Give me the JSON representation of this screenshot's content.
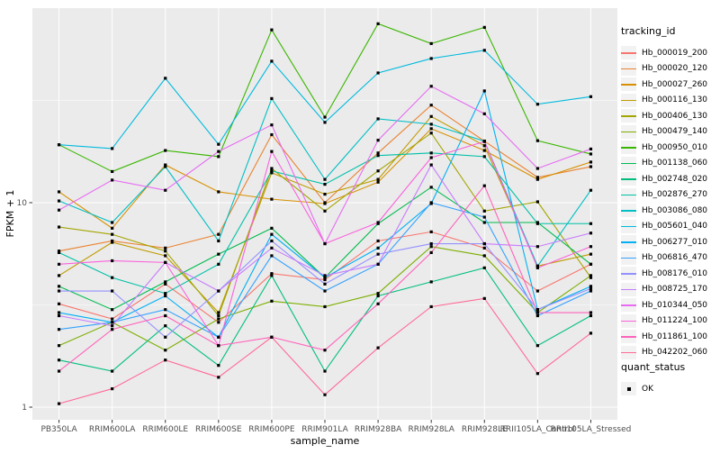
{
  "figure": {
    "background": "#FFFFFF",
    "panel_background": "#EBEBEB",
    "gridline_color": "#FFFFFF",
    "tick_color": "#333333",
    "tick_label_color": "#4D4D4D",
    "axis_title_color": "#000000",
    "legend_key_fill": "#F2F2F2"
  },
  "legend": {
    "tracking_title": "tracking_id",
    "quant_title": "quant_status",
    "quant_items": [
      {
        "label": "OK",
        "marker": "black-filled-square"
      }
    ]
  },
  "chart_data": {
    "type": "line",
    "title": "",
    "xlabel": "sample_name",
    "ylabel": "FPKM + 1",
    "y_scale": "log10",
    "ylim": [
      0.87,
      90
    ],
    "y_ticks": [
      1,
      10
    ],
    "y_minor_ticks": [
      3.1623,
      31.623
    ],
    "grid": true,
    "legend_position": "right",
    "point_marker": "filled-square",
    "point_color": "#000000",
    "categories": [
      "PB350LA",
      "RRIM600LA",
      "RRIM600LE",
      "RRIM600SE",
      "RRIM600PE",
      "RRIM901LA",
      "RRIM928BA",
      "RRIM928LA",
      "RRIM928LE",
      "RRII105LA_Control",
      "RRII105LA_Stressed"
    ],
    "series": [
      {
        "name": "Hb_000019_200",
        "color": "#F8766D",
        "values": [
          3.2,
          2.7,
          4.0,
          2.6,
          4.5,
          4.2,
          6.5,
          7.2,
          6.0,
          3.7,
          5.0
        ]
      },
      {
        "name": "Hb_000020_120",
        "color": "#EA8331",
        "values": [
          5.8,
          6.5,
          6.0,
          7.0,
          21.5,
          10.0,
          17.5,
          30.0,
          20.0,
          13.3,
          15.0
        ]
      },
      {
        "name": "Hb_000027_260",
        "color": "#D89000",
        "values": [
          11.3,
          7.5,
          15.3,
          11.3,
          10.4,
          9.9,
          12.6,
          23.0,
          18.0,
          13.0,
          15.8
        ]
      },
      {
        "name": "Hb_000116_130",
        "color": "#C09B00",
        "values": [
          4.4,
          6.4,
          5.5,
          2.9,
          14.0,
          11.0,
          13.0,
          26.4,
          19.0,
          4.9,
          5.6
        ]
      },
      {
        "name": "Hb_000406_130",
        "color": "#A3A500",
        "values": [
          7.6,
          7.0,
          5.8,
          2.8,
          14.7,
          9.1,
          14.3,
          21.9,
          9.1,
          10.1,
          4.3
        ]
      },
      {
        "name": "Hb_000479_140",
        "color": "#7CAE00",
        "values": [
          2.0,
          2.6,
          1.9,
          2.7,
          3.3,
          3.1,
          3.6,
          6.1,
          5.5,
          2.9,
          4.4
        ]
      },
      {
        "name": "Hb_000950_010",
        "color": "#39B600",
        "values": [
          19.2,
          14.2,
          18.0,
          16.8,
          70.0,
          26.2,
          75.0,
          60.0,
          72.0,
          20.1,
          17.3
        ]
      },
      {
        "name": "Hb_001138_060",
        "color": "#00BB4E",
        "values": [
          3.9,
          3.0,
          4.1,
          5.6,
          7.5,
          4.3,
          7.9,
          11.9,
          8.0,
          8.0,
          5.0
        ]
      },
      {
        "name": "Hb_002748_020",
        "color": "#00BF7D",
        "values": [
          1.7,
          1.5,
          2.5,
          1.6,
          4.4,
          1.5,
          3.5,
          4.1,
          4.8,
          2.0,
          2.8
        ]
      },
      {
        "name": "Hb_002876_270",
        "color": "#00C1A7",
        "values": [
          5.7,
          4.3,
          3.6,
          5.0,
          14.3,
          12.3,
          17.0,
          17.5,
          16.8,
          7.9,
          7.9
        ]
      },
      {
        "name": "Hb_003086_080",
        "color": "#00BFC4",
        "values": [
          10.2,
          8.0,
          15.0,
          6.5,
          32.3,
          13.0,
          25.7,
          24.2,
          20.0,
          4.9,
          11.5
        ]
      },
      {
        "name": "Hb_005601_040",
        "color": "#00BADE",
        "values": [
          19.2,
          18.4,
          40.6,
          19.3,
          49.2,
          24.7,
          43.1,
          50.7,
          55.6,
          30.3,
          33.0
        ]
      },
      {
        "name": "Hb_006277_010",
        "color": "#00B0F6",
        "values": [
          2.9,
          2.6,
          3.5,
          2.2,
          7.0,
          4.3,
          6.0,
          9.9,
          35.2,
          3.0,
          3.9
        ]
      },
      {
        "name": "Hb_006816_470",
        "color": "#35A2FF",
        "values": [
          2.4,
          2.6,
          3.0,
          2.2,
          5.5,
          3.7,
          5.0,
          10.0,
          8.5,
          2.8,
          3.7
        ]
      },
      {
        "name": "Hb_008176_010",
        "color": "#9590FF",
        "values": [
          3.7,
          3.7,
          2.2,
          3.7,
          6.5,
          4.0,
          5.6,
          6.3,
          6.3,
          3.0,
          3.8
        ]
      },
      {
        "name": "Hb_008725_170",
        "color": "#C77CFF",
        "values": [
          2.8,
          2.5,
          5.1,
          3.7,
          6.0,
          4.4,
          5.0,
          15.3,
          6.3,
          6.1,
          7.1
        ]
      },
      {
        "name": "Hb_010344_050",
        "color": "#E76BF3",
        "values": [
          9.2,
          12.9,
          11.5,
          17.8,
          24.0,
          6.3,
          20.2,
          37.1,
          27.2,
          14.7,
          18.3
        ]
      },
      {
        "name": "Hb_011224_100",
        "color": "#FA62DB",
        "values": [
          5.0,
          5.2,
          5.1,
          2.0,
          17.8,
          6.3,
          8.0,
          16.6,
          19.9,
          4.8,
          6.1
        ]
      },
      {
        "name": "Hb_011861_100",
        "color": "#FF62BC",
        "values": [
          1.5,
          2.4,
          2.8,
          2.0,
          2.2,
          1.9,
          3.2,
          5.7,
          12.1,
          2.9,
          2.9
        ]
      },
      {
        "name": "Hb_042202_060",
        "color": "#FF6A98",
        "values": [
          1.04,
          1.23,
          1.7,
          1.4,
          2.2,
          1.15,
          1.95,
          3.1,
          3.4,
          1.46,
          2.3
        ]
      }
    ]
  }
}
